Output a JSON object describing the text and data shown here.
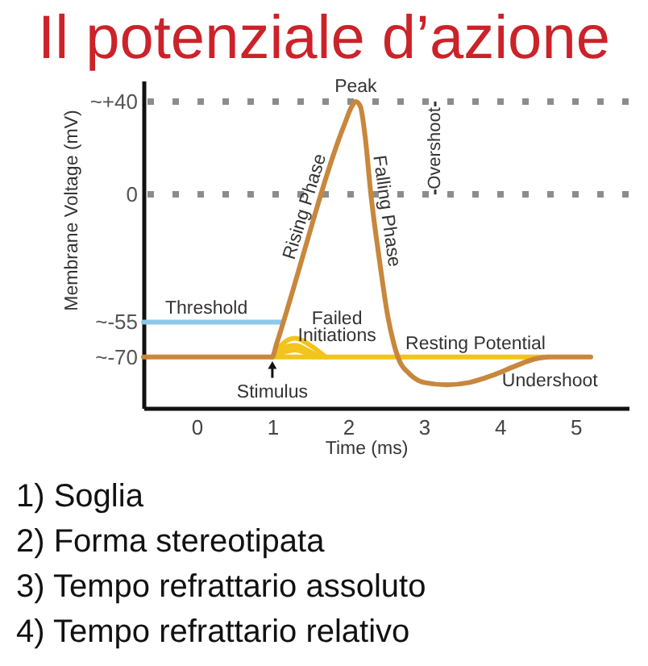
{
  "chart_data": {
    "type": "line",
    "title": "Il potenziale d’azione",
    "xlabel": "Time (ms)",
    "ylabel": "Membrane Voltage (mV)",
    "xlim": [
      -0.7,
      5.7
    ],
    "ylim": [
      -92,
      49
    ],
    "xticks": [
      0,
      1,
      2,
      3,
      4,
      5
    ],
    "yticks": [
      {
        "value": 40,
        "label": "~+40"
      },
      0,
      {
        "value": -55,
        "label": "~-55"
      },
      {
        "value": -70,
        "label": "~-70"
      }
    ],
    "series": [
      {
        "color": "#8dc8ea",
        "x": [
          -0.7,
          1.14
        ],
        "values": [
          -55,
          -55
        ]
      },
      {
        "color": "#f2c41c",
        "x": [
          1.0,
          4.65
        ],
        "values": [
          -70,
          -70
        ]
      },
      {
        "color": "#f2c41c",
        "x": [
          1.0,
          1.15,
          1.3,
          1.5,
          1.7
        ],
        "values": [
          -70,
          -64,
          -62,
          -65,
          -70
        ]
      },
      {
        "color": "#f2c41c",
        "x": [
          1.0,
          1.15,
          1.3,
          1.45,
          1.62
        ],
        "values": [
          -70,
          -66,
          -65,
          -67,
          -70
        ]
      },
      {
        "color": "#f2c41c",
        "x": [
          1.0,
          1.15,
          1.3,
          1.42,
          1.55
        ],
        "values": [
          -70,
          -68,
          -67,
          -68,
          -70
        ]
      },
      {
        "color": "#c8873c",
        "x": [
          -0.7,
          1.0,
          1.05,
          1.95,
          2.05,
          2.1,
          2.16,
          2.22,
          2.3,
          2.42,
          2.52,
          2.6,
          2.68,
          2.8,
          3.0,
          3.3,
          3.6,
          3.9,
          4.2,
          4.45,
          4.65,
          5.2
        ],
        "values": [
          -70,
          -70,
          -65,
          30,
          38,
          40,
          38,
          26,
          0,
          -30,
          -52,
          -64,
          -72,
          -77,
          -81,
          -82,
          -81,
          -78,
          -74,
          -71,
          -70,
          -70
        ]
      }
    ],
    "ref_lines": [
      {
        "axis": "y",
        "value": 40,
        "color": "#8c8c8c",
        "line_style": "dotted"
      },
      {
        "axis": "y",
        "value": 0,
        "color": "#8c8c8c",
        "line_style": "dotted"
      }
    ],
    "annotations": [
      {
        "text": "Peak",
        "x": 2.1,
        "y": 40
      },
      {
        "text": "Rising Phase",
        "x": 1.6,
        "y": -7
      },
      {
        "text": "Falling Phase",
        "x": 2.33,
        "y": -8
      },
      {
        "text": "Threshold",
        "x": 0.13,
        "y": -55
      },
      {
        "text": "Failed Initiations",
        "x": 1.3,
        "y": -62
      },
      {
        "text": "Resting Potential",
        "x": 3.68,
        "y": -70
      },
      {
        "text": "Undershoot",
        "x": 4.3,
        "y": -73
      },
      {
        "text": "Stimulus",
        "x": 1.0,
        "y": -70
      },
      "Overshoot",
      "1) Soglia",
      "2) Forma stereotipata",
      "3) Tempo refrattario assoluto",
      "4) Tempo refrattario relativo"
    ]
  }
}
